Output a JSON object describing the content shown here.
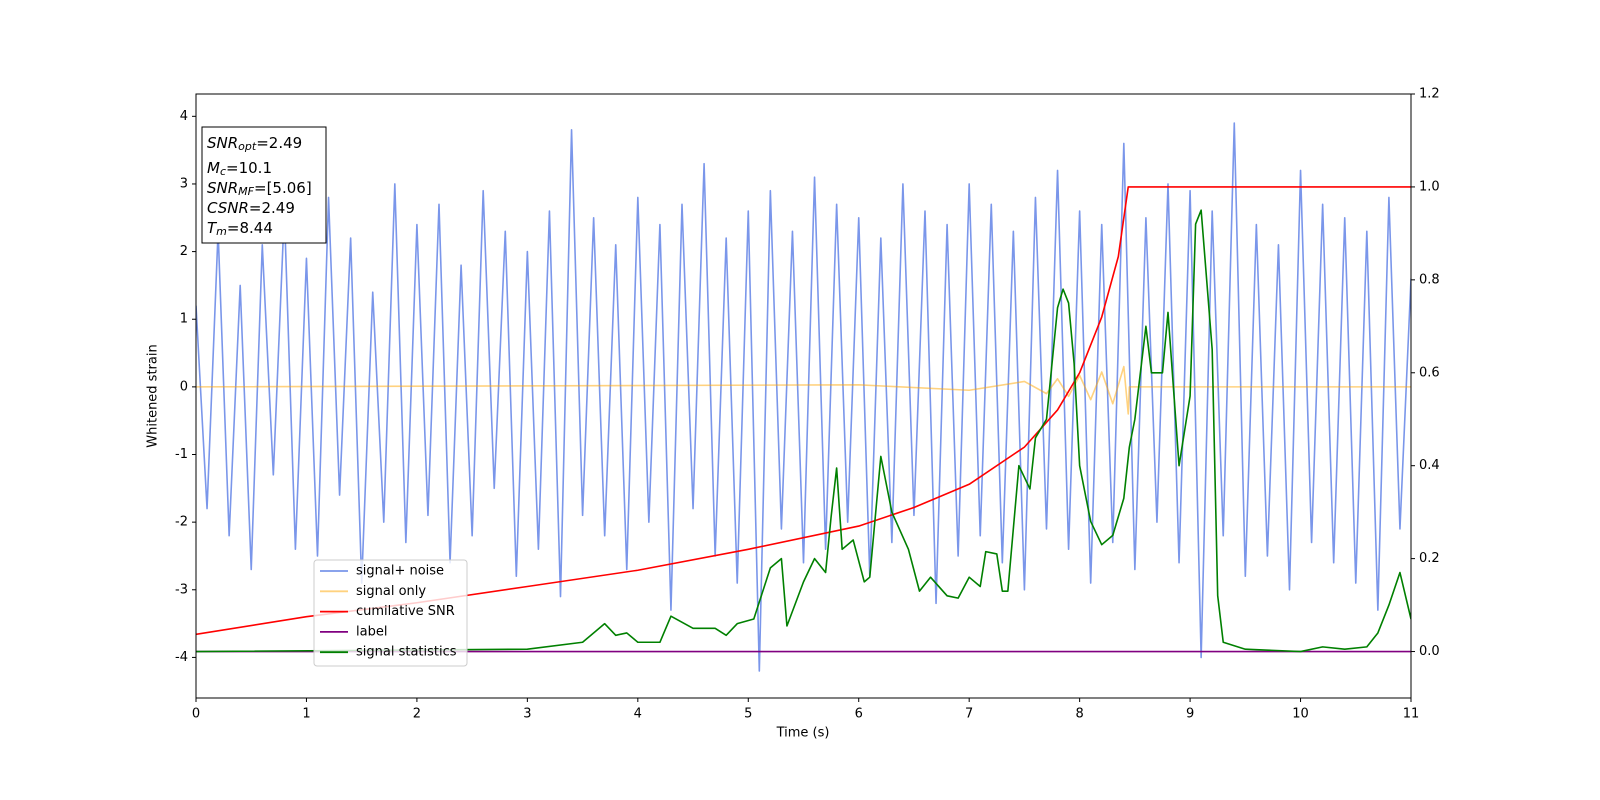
{
  "chart_data": {
    "type": "line",
    "xlabel": "Time (s)",
    "ylabel": "Whitened strain",
    "xlim": [
      0,
      11
    ],
    "xticks": [
      0,
      1,
      2,
      3,
      4,
      5,
      6,
      7,
      8,
      9,
      10,
      11
    ],
    "ylim": [
      -4.6,
      4.33
    ],
    "yticks": [
      -4,
      -3,
      -2,
      -1,
      0,
      1,
      2,
      3,
      4
    ],
    "y2lim": [
      -0.1,
      1.2
    ],
    "y2ticks": [
      {
        "value": 0,
        "label": "0.0"
      },
      0.2,
      0.4,
      0.6,
      0.8,
      {
        "value": 1,
        "label": "1.0"
      },
      1.2
    ],
    "legend": "lower left",
    "annotations": [
      {
        "name": "SNR",
        "sub": "opt",
        "value": "=2.49"
      },
      {
        "name": "M",
        "sub": "c",
        "value": "=10.1"
      },
      {
        "name": "SNR",
        "sub": "MF",
        "value": "=[5.06]"
      },
      {
        "name": "CSNR",
        "value": "=2.49"
      },
      {
        "name": "T",
        "sub": "m",
        "value": "=8.44"
      }
    ],
    "series": [
      {
        "name": "signal+ noise",
        "color": "#4169e1",
        "alpha": 0.7,
        "x": [
          0,
          0.1,
          0.2,
          0.3,
          0.4,
          0.5,
          0.6,
          0.7,
          0.8,
          0.9,
          1,
          1.1,
          1.2,
          1.3,
          1.4,
          1.5,
          1.6,
          1.7,
          1.8,
          1.9,
          2,
          2.1,
          2.2,
          2.3,
          2.4,
          2.5,
          2.6,
          2.7,
          2.8,
          2.9,
          3,
          3.1,
          3.2,
          3.3,
          3.4,
          3.5,
          3.6,
          3.7,
          3.8,
          3.9,
          4,
          4.1,
          4.2,
          4.3,
          4.4,
          4.5,
          4.6,
          4.7,
          4.8,
          4.9,
          5,
          5.1,
          5.2,
          5.3,
          5.4,
          5.5,
          5.6,
          5.7,
          5.8,
          5.9,
          6,
          6.1,
          6.2,
          6.3,
          6.4,
          6.5,
          6.6,
          6.7,
          6.8,
          6.9,
          7,
          7.1,
          7.2,
          7.3,
          7.4,
          7.5,
          7.6,
          7.7,
          7.8,
          7.9,
          8,
          8.1,
          8.2,
          8.3,
          8.4,
          8.5,
          8.6,
          8.7,
          8.8,
          8.9,
          9,
          9.1,
          9.2,
          9.3,
          9.4,
          9.5,
          9.6,
          9.7,
          9.8,
          9.9,
          10,
          10.1,
          10.2,
          10.3,
          10.4,
          10.5,
          10.6,
          10.7,
          10.8,
          10.9,
          11
        ],
        "values": [
          1.2,
          -1.8,
          2.3,
          -2.2,
          1.5,
          -2.7,
          2.1,
          -1.3,
          2.6,
          -2.4,
          1.9,
          -2.5,
          2.8,
          -1.6,
          2.2,
          -2.9,
          1.4,
          -2.0,
          3.0,
          -2.3,
          2.4,
          -1.9,
          2.7,
          -2.6,
          1.8,
          -2.2,
          2.9,
          -1.5,
          2.3,
          -2.8,
          2.0,
          -2.4,
          2.6,
          -3.1,
          3.8,
          -1.9,
          2.5,
          -2.2,
          2.1,
          -2.7,
          2.8,
          -2.0,
          2.4,
          -3.3,
          2.7,
          -1.8,
          3.3,
          -2.5,
          2.2,
          -2.9,
          2.6,
          -4.2,
          2.9,
          -2.1,
          2.3,
          -2.6,
          3.1,
          -2.4,
          2.7,
          -2.0,
          2.5,
          -2.8,
          2.2,
          -2.3,
          3.0,
          -1.9,
          2.6,
          -3.2,
          2.4,
          -2.5,
          3.0,
          -2.2,
          2.7,
          -2.6,
          2.3,
          -3.0,
          2.8,
          -2.1,
          3.2,
          -2.4,
          2.6,
          -2.9,
          2.4,
          -2.3,
          3.6,
          -2.7,
          2.5,
          -2.0,
          3.0,
          -2.6,
          2.9,
          -4.0,
          2.6,
          -2.2,
          3.9,
          -2.8,
          2.4,
          -2.5,
          2.1,
          -3.0,
          3.2,
          -2.3,
          2.7,
          -2.6,
          2.5,
          -2.9,
          2.3,
          -3.3,
          2.8,
          -2.1,
          1.6
        ]
      },
      {
        "name": "signal only",
        "color": "#ffa500",
        "alpha": 0.5,
        "x": [
          0,
          6,
          7,
          7.5,
          7.7,
          7.8,
          7.9,
          8,
          8.1,
          8.2,
          8.3,
          8.4,
          8.44,
          8.45,
          11
        ],
        "values": [
          0,
          0.03,
          -0.05,
          0.08,
          -0.1,
          0.12,
          -0.14,
          0.17,
          -0.19,
          0.22,
          -0.25,
          0.3,
          -0.4,
          0,
          0
        ]
      },
      {
        "name": "cumilative SNR",
        "color": "#ff0000",
        "axis": "y2",
        "x": [
          0,
          1,
          2,
          3,
          4,
          5,
          6,
          6.5,
          7,
          7.5,
          7.8,
          8,
          8.2,
          8.35,
          8.44,
          11
        ],
        "values": [
          0.037,
          0.075,
          0.105,
          0.14,
          0.175,
          0.22,
          0.27,
          0.31,
          0.36,
          0.44,
          0.52,
          0.6,
          0.72,
          0.85,
          1,
          1
        ]
      },
      {
        "name": "label",
        "color": "#800080",
        "axis": "y2",
        "x": [
          0,
          11
        ],
        "values": [
          0,
          0
        ]
      },
      {
        "name": "signal statistics",
        "color": "#008000",
        "axis": "y2",
        "x": [
          0,
          3,
          3.5,
          3.7,
          3.8,
          3.9,
          4,
          4.2,
          4.3,
          4.5,
          4.7,
          4.8,
          4.9,
          5.05,
          5.2,
          5.3,
          5.35,
          5.5,
          5.6,
          5.7,
          5.75,
          5.8,
          5.85,
          5.95,
          6.05,
          6.1,
          6.2,
          6.3,
          6.45,
          6.55,
          6.65,
          6.8,
          6.9,
          7,
          7.1,
          7.15,
          7.25,
          7.3,
          7.35,
          7.45,
          7.55,
          7.6,
          7.7,
          7.8,
          7.85,
          7.9,
          7.95,
          8,
          8.1,
          8.2,
          8.3,
          8.4,
          8.45,
          8.5,
          8.6,
          8.65,
          8.75,
          8.8,
          8.9,
          9,
          9.05,
          9.1,
          9.2,
          9.25,
          9.3,
          9.5,
          10,
          10.2,
          10.4,
          10.6,
          10.7,
          10.8,
          10.9,
          11
        ],
        "values": [
          0,
          0.005,
          0.02,
          0.06,
          0.035,
          0.04,
          0.02,
          0.02,
          0.076,
          0.05,
          0.05,
          0.035,
          0.06,
          0.07,
          0.18,
          0.2,
          0.055,
          0.15,
          0.2,
          0.17,
          0.29,
          0.395,
          0.22,
          0.24,
          0.15,
          0.16,
          0.42,
          0.3,
          0.22,
          0.13,
          0.16,
          0.12,
          0.115,
          0.16,
          0.14,
          0.215,
          0.21,
          0.13,
          0.13,
          0.4,
          0.35,
          0.46,
          0.5,
          0.74,
          0.78,
          0.75,
          0.62,
          0.4,
          0.28,
          0.23,
          0.25,
          0.33,
          0.44,
          0.5,
          0.7,
          0.6,
          0.6,
          0.73,
          0.4,
          0.55,
          0.92,
          0.95,
          0.65,
          0.12,
          0.02,
          0.005,
          0,
          0.01,
          0.005,
          0.01,
          0.04,
          0.1,
          0.17,
          0.07
        ]
      }
    ]
  }
}
